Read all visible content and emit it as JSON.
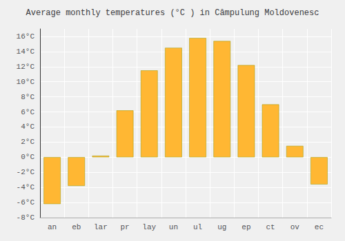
{
  "chart_data": {
    "type": "bar",
    "title": "Average monthly temperatures (°C ) in Câmpulung Moldovenesc",
    "categories": [
      "an",
      "eb",
      "lar",
      "pr",
      "lay",
      "un",
      "ul",
      "ug",
      "ep",
      "ct",
      "ov",
      "ec"
    ],
    "values": [
      -6.2,
      -3.8,
      0.2,
      6.2,
      11.5,
      14.5,
      15.8,
      15.4,
      12.2,
      7.0,
      1.5,
      -3.6
    ],
    "color": "#FFB733",
    "ylim": [
      -8,
      17
    ],
    "yticks": [
      {
        "value": -8,
        "label": "-8°C"
      },
      {
        "value": -6,
        "label": "-6°C"
      },
      {
        "value": -4,
        "label": "-4°C"
      },
      {
        "value": -2,
        "label": "-2°C"
      },
      {
        "value": 0,
        "label": "0°C"
      },
      {
        "value": 2,
        "label": "2°C"
      },
      {
        "value": 4,
        "label": "4°C"
      },
      {
        "value": 6,
        "label": "6°C"
      },
      {
        "value": 8,
        "label": "8°C"
      },
      {
        "value": 10,
        "label": "10°C"
      },
      {
        "value": 12,
        "label": "12°C"
      },
      {
        "value": 14,
        "label": "14°C"
      },
      {
        "value": 16,
        "label": "16°C"
      }
    ],
    "grid": true
  }
}
